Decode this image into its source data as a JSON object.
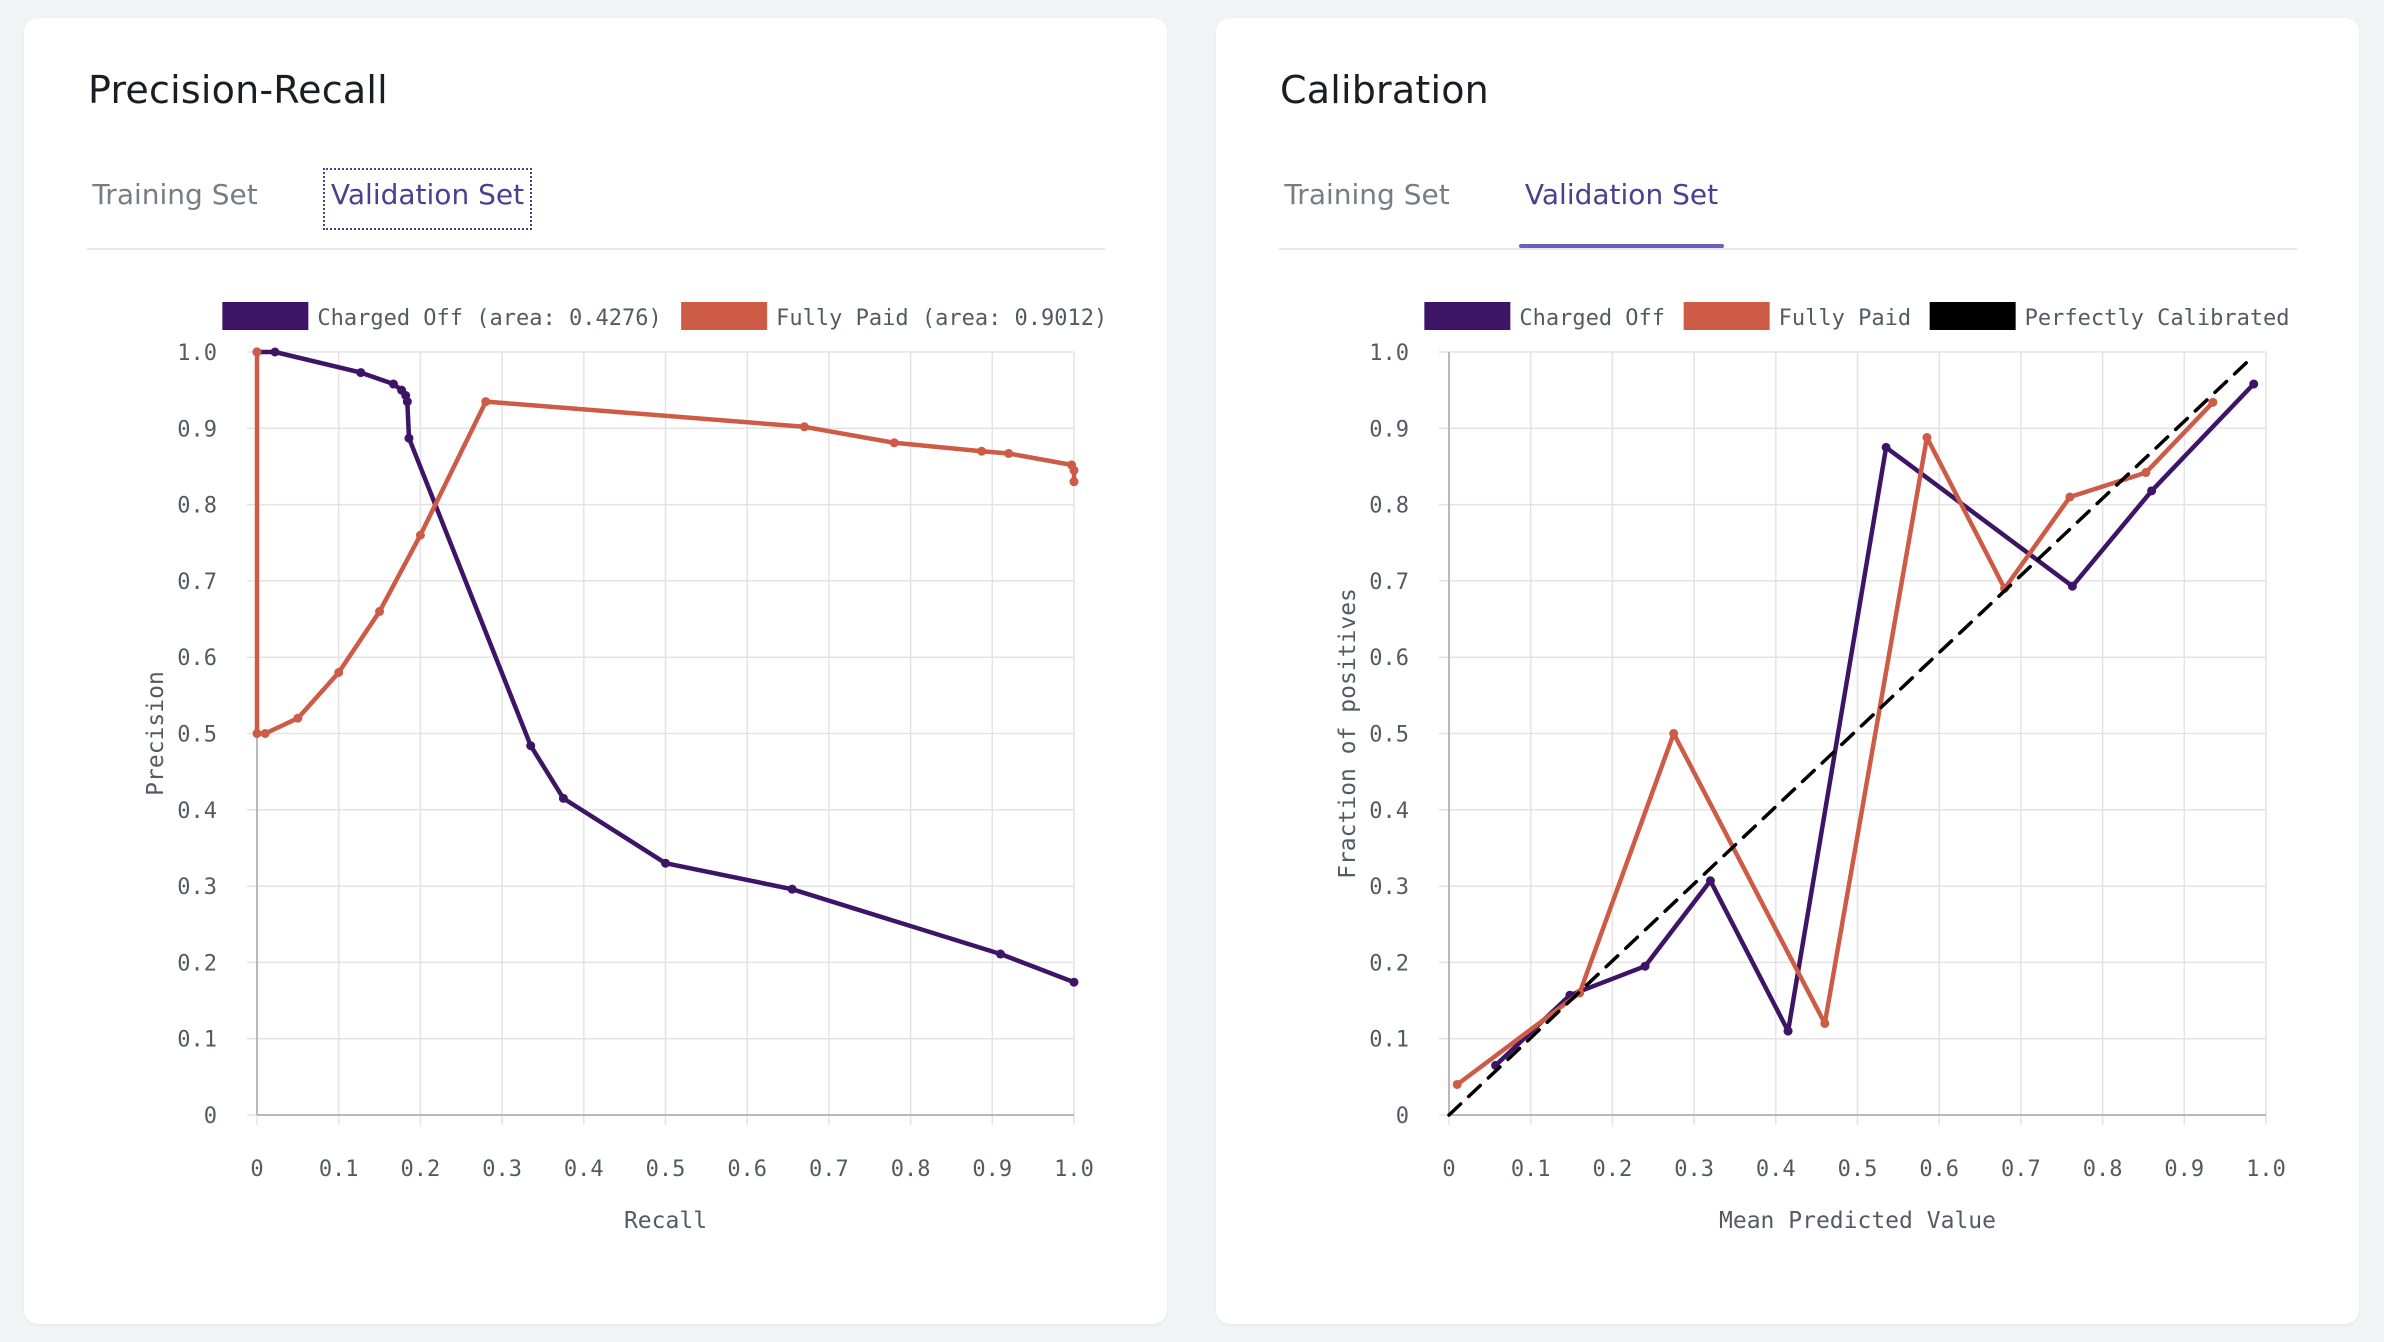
{
  "cards": [
    {
      "title": "Precision-Recall",
      "tabs": [
        {
          "label": "Training Set",
          "active": false
        },
        {
          "label": "Validation Set",
          "active": true
        }
      ]
    },
    {
      "title": "Calibration",
      "tabs": [
        {
          "label": "Training Set",
          "active": false
        },
        {
          "label": "Validation Set",
          "active": true
        }
      ]
    }
  ],
  "colors": {
    "charged_off": "#3d1466",
    "fully_paid": "#cd5b45",
    "perfect": "#000000",
    "grid": "#e3e3e3",
    "axis": "#b9b9b9"
  },
  "chart_data": [
    {
      "type": "line",
      "xlabel": "Recall",
      "ylabel": "Precision",
      "xlim": [
        0,
        1
      ],
      "ylim": [
        0,
        1
      ],
      "grid": true,
      "legend_position": "top",
      "xticks": [
        "0",
        "0.1",
        "0.2",
        "0.3",
        "0.4",
        "0.5",
        "0.6",
        "0.7",
        "0.8",
        "0.9",
        "1.0"
      ],
      "yticks": [
        "0",
        "0.1",
        "0.2",
        "0.3",
        "0.4",
        "0.5",
        "0.6",
        "0.7",
        "0.8",
        "0.9",
        "1.0"
      ],
      "series": [
        {
          "name": "Charged Off (area: 0.4276)",
          "color_key": "charged_off",
          "points": [
            [
              0,
              1.0
            ],
            [
              0.022,
              1.0
            ],
            [
              0.127,
              0.973
            ],
            [
              0.167,
              0.958
            ],
            [
              0.177,
              0.95
            ],
            [
              0.182,
              0.943
            ],
            [
              0.184,
              0.935
            ],
            [
              0.186,
              0.887
            ],
            [
              0.335,
              0.484
            ],
            [
              0.375,
              0.415
            ],
            [
              0.5,
              0.33
            ],
            [
              0.655,
              0.296
            ],
            [
              0.91,
              0.211
            ],
            [
              1.0,
              0.174
            ]
          ]
        },
        {
          "name": "Fully Paid (area: 0.9012)",
          "color_key": "fully_paid",
          "points": [
            [
              0,
              1.0
            ],
            [
              0,
              0.5
            ],
            [
              0.01,
              0.5
            ],
            [
              0.05,
              0.52
            ],
            [
              0.1,
              0.58
            ],
            [
              0.15,
              0.66
            ],
            [
              0.2,
              0.76
            ],
            [
              0.28,
              0.935
            ],
            [
              0.67,
              0.902
            ],
            [
              0.78,
              0.881
            ],
            [
              0.887,
              0.87
            ],
            [
              0.92,
              0.867
            ],
            [
              0.997,
              0.852
            ],
            [
              1.0,
              0.845
            ],
            [
              1.0,
              0.83
            ]
          ]
        }
      ]
    },
    {
      "type": "line",
      "xlabel": "Mean Predicted Value",
      "ylabel": "Fraction of positives",
      "xlim": [
        0,
        1
      ],
      "ylim": [
        0,
        1
      ],
      "grid": true,
      "legend_position": "top",
      "xticks": [
        "0",
        "0.1",
        "0.2",
        "0.3",
        "0.4",
        "0.5",
        "0.6",
        "0.7",
        "0.8",
        "0.9",
        "1.0"
      ],
      "yticks": [
        "0",
        "0.1",
        "0.2",
        "0.3",
        "0.4",
        "0.5",
        "0.6",
        "0.7",
        "0.8",
        "0.9",
        "1.0"
      ],
      "series": [
        {
          "name": "Charged Off",
          "color_key": "charged_off",
          "points": [
            [
              0.057,
              0.065
            ],
            [
              0.148,
              0.157
            ],
            [
              0.24,
              0.195
            ],
            [
              0.32,
              0.307
            ],
            [
              0.415,
              0.11
            ],
            [
              0.535,
              0.875
            ],
            [
              0.763,
              0.693
            ],
            [
              0.86,
              0.818
            ],
            [
              0.985,
              0.958
            ]
          ]
        },
        {
          "name": "Fully Paid",
          "color_key": "fully_paid",
          "points": [
            [
              0.01,
              0.04
            ],
            [
              0.16,
              0.16
            ],
            [
              0.275,
              0.5
            ],
            [
              0.46,
              0.12
            ],
            [
              0.585,
              0.888
            ],
            [
              0.68,
              0.69
            ],
            [
              0.76,
              0.81
            ],
            [
              0.853,
              0.842
            ],
            [
              0.935,
              0.934
            ]
          ]
        },
        {
          "name": "Perfectly Calibrated",
          "color_key": "perfect",
          "dashed": true,
          "points": [
            [
              0,
              0
            ],
            [
              0.98,
              0.99
            ]
          ]
        }
      ]
    }
  ]
}
